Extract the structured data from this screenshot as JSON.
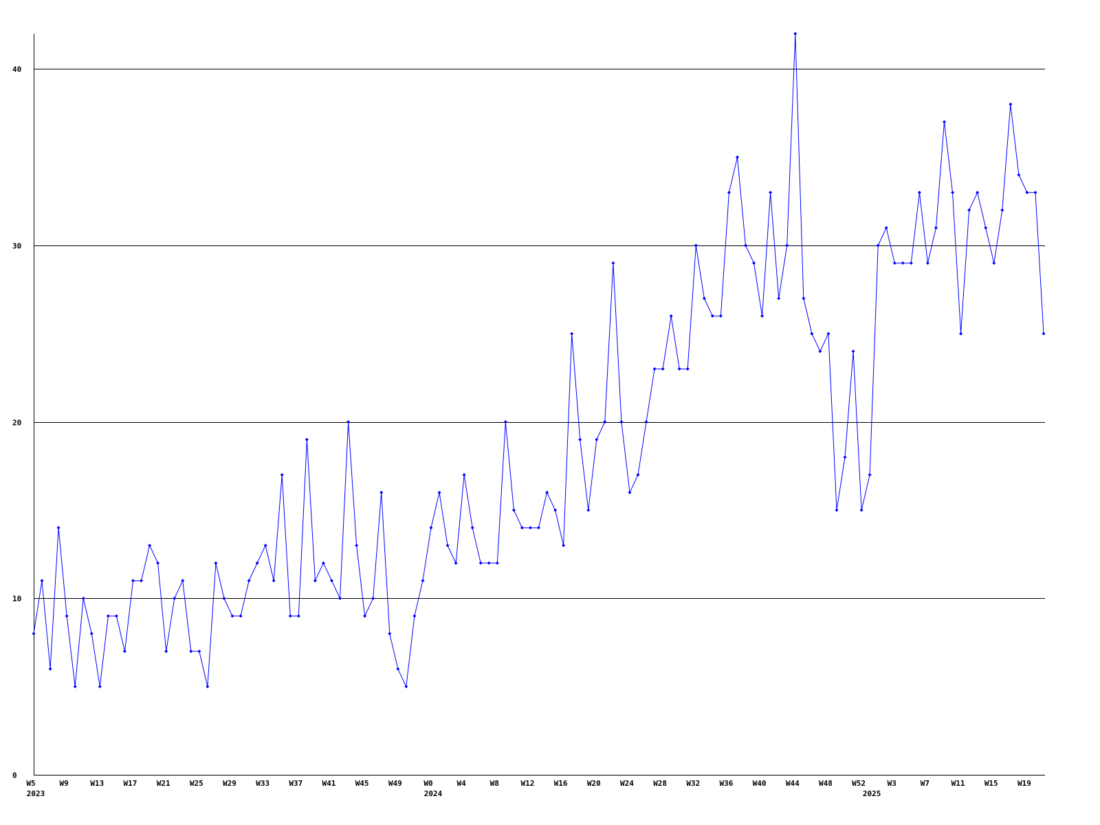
{
  "chart_data": {
    "type": "line",
    "categories": [
      "W5",
      null,
      null,
      null,
      "W9",
      null,
      null,
      null,
      "W13",
      null,
      null,
      null,
      "W17",
      null,
      null,
      null,
      "W21",
      null,
      null,
      null,
      "W25",
      null,
      null,
      null,
      "W29",
      null,
      null,
      null,
      "W33",
      null,
      null,
      null,
      "W37",
      null,
      null,
      null,
      "W41",
      null,
      null,
      null,
      "W45",
      null,
      null,
      null,
      "W49",
      null,
      null,
      null,
      "W0",
      null,
      null,
      null,
      "W4",
      null,
      null,
      null,
      "W8",
      null,
      null,
      null,
      "W12",
      null,
      null,
      null,
      "W16",
      null,
      null,
      null,
      "W20",
      null,
      null,
      null,
      "W24",
      null,
      null,
      null,
      "W28",
      null,
      null,
      null,
      "W32",
      null,
      null,
      null,
      "W36",
      null,
      null,
      null,
      "W40",
      null,
      null,
      null,
      "W44",
      null,
      null,
      null,
      "W48",
      null,
      null,
      null,
      "W52",
      null,
      null,
      null,
      "W3",
      null,
      null,
      null,
      "W7",
      null,
      null,
      null,
      "W11",
      null,
      null,
      null,
      "W15",
      null,
      null,
      null,
      "W19",
      null,
      null
    ],
    "x_sublabels": [
      "2023",
      null,
      null,
      null,
      null,
      null,
      null,
      null,
      null,
      null,
      null,
      null,
      null,
      null,
      null,
      null,
      null,
      null,
      null,
      null,
      null,
      null,
      null,
      null,
      null,
      null,
      null,
      null,
      null,
      null,
      null,
      null,
      null,
      null,
      null,
      null,
      null,
      null,
      null,
      null,
      null,
      null,
      null,
      null,
      null,
      null,
      null,
      null,
      "2024",
      null,
      null,
      null,
      null,
      null,
      null,
      null,
      null,
      null,
      null,
      null,
      null,
      null,
      null,
      null,
      null,
      null,
      null,
      null,
      null,
      null,
      null,
      null,
      null,
      null,
      null,
      null,
      null,
      null,
      null,
      null,
      null,
      null,
      null,
      null,
      null,
      null,
      null,
      null,
      null,
      null,
      null,
      null,
      null,
      null,
      null,
      null,
      null,
      null,
      null,
      null,
      null,
      "2025",
      null,
      null,
      null,
      null,
      null,
      null,
      null,
      null,
      null,
      null,
      null,
      null,
      null,
      null,
      null,
      null,
      null,
      null,
      null,
      null,
      null
    ],
    "values": [
      8,
      11,
      6,
      14,
      9,
      5,
      10,
      8,
      5,
      9,
      9,
      7,
      11,
      11,
      13,
      12,
      7,
      10,
      11,
      7,
      7,
      5,
      12,
      10,
      9,
      9,
      11,
      12,
      13,
      11,
      17,
      9,
      9,
      19,
      11,
      12,
      11,
      10,
      20,
      13,
      9,
      10,
      16,
      8,
      6,
      5,
      9,
      11,
      14,
      16,
      13,
      12,
      17,
      14,
      12,
      12,
      12,
      20,
      15,
      14,
      14,
      14,
      16,
      15,
      13,
      25,
      19,
      15,
      19,
      20,
      29,
      20,
      16,
      17,
      20,
      23,
      23,
      26,
      23,
      23,
      30,
      27,
      26,
      26,
      33,
      35,
      30,
      29,
      26,
      33,
      27,
      30,
      42,
      27,
      25,
      24,
      25,
      15,
      18,
      24,
      15,
      17,
      30,
      31,
      29,
      29,
      29,
      33,
      29,
      31,
      37,
      33,
      25,
      32,
      33,
      31,
      29,
      32,
      38,
      34,
      33,
      33,
      25
    ],
    "color": "#0000ff",
    "ylim": [
      0,
      42
    ],
    "yticks": [
      0,
      10,
      20,
      30,
      40
    ],
    "grid": true
  }
}
